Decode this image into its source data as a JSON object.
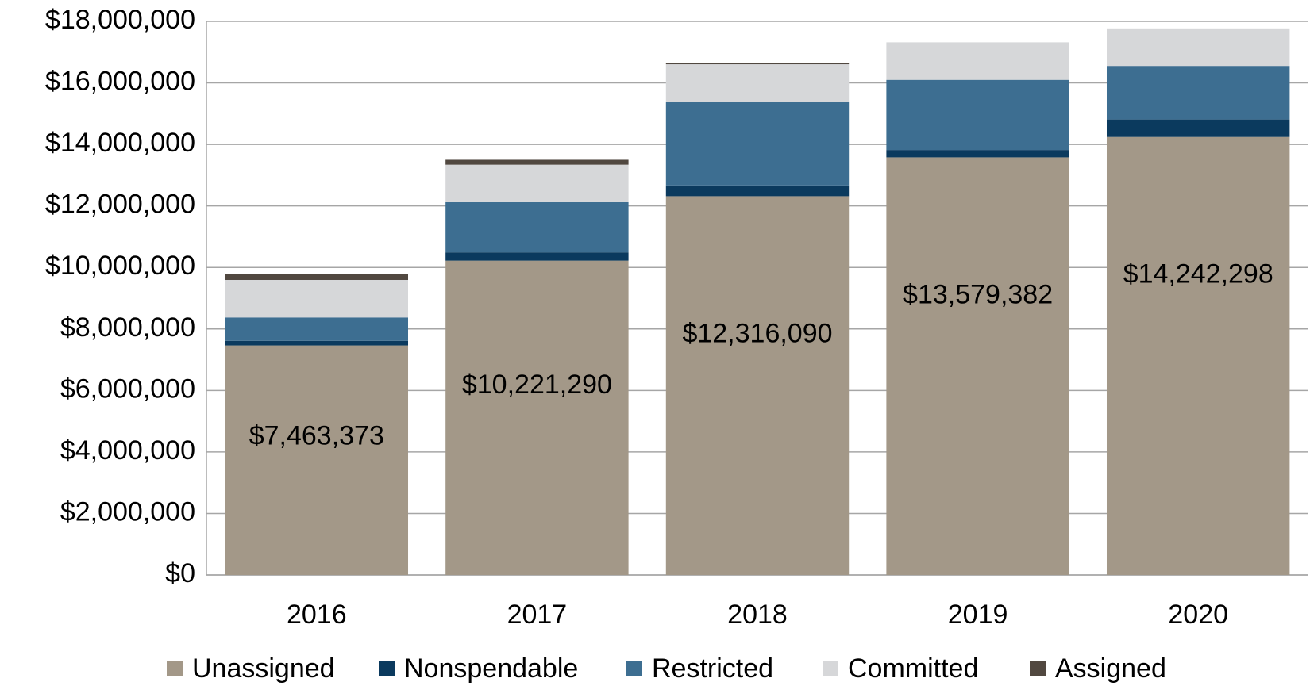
{
  "chart_data": {
    "type": "stacked_bar",
    "categories": [
      "2016",
      "2017",
      "2018",
      "2019",
      "2020"
    ],
    "series": [
      {
        "name": "Unassigned",
        "color": "#a39888",
        "values": [
          7463373,
          10221290,
          12316090,
          13579382,
          14242298
        ],
        "value_labels": [
          "$7,463,373",
          "$10,221,290",
          "$12,316,090",
          "$13,579,382",
          "$14,242,298"
        ]
      },
      {
        "name": "Nonspendable",
        "color": "#0b3a5e",
        "values": [
          150000,
          270000,
          350000,
          240000,
          570000
        ]
      },
      {
        "name": "Restricted",
        "color": "#3d6e91",
        "values": [
          760000,
          1630000,
          2720000,
          2280000,
          1740000
        ]
      },
      {
        "name": "Committed",
        "color": "#d6d7d9",
        "values": [
          1220000,
          1220000,
          1220000,
          1220000,
          1220000
        ]
      },
      {
        "name": "Assigned",
        "color": "#514840",
        "values": [
          190000,
          160000,
          30000,
          0,
          0
        ]
      }
    ],
    "ylim": [
      0,
      18000000
    ],
    "yticks": [
      {
        "value": 0,
        "label": "$0"
      },
      {
        "value": 2000000,
        "label": "$2,000,000"
      },
      {
        "value": 4000000,
        "label": "$4,000,000"
      },
      {
        "value": 6000000,
        "label": "$6,000,000"
      },
      {
        "value": 8000000,
        "label": "$8,000,000"
      },
      {
        "value": 10000000,
        "label": "$10,000,000"
      },
      {
        "value": 12000000,
        "label": "$12,000,000"
      },
      {
        "value": 14000000,
        "label": "$14,000,000"
      },
      {
        "value": 16000000,
        "label": "$16,000,000"
      },
      {
        "value": 18000000,
        "label": "$18,000,000"
      }
    ],
    "grid": true,
    "legend": "bottom"
  }
}
